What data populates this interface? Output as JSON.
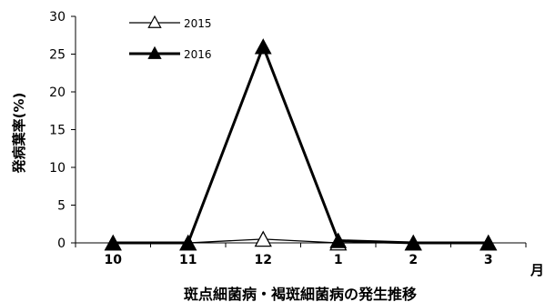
{
  "chart_data": {
    "type": "line",
    "title": "斑点細菌病・褐斑細菌病の発生推移",
    "xlabel": "月",
    "ylabel": "発病葉率(%)",
    "categories": [
      "10",
      "11",
      "12",
      "1",
      "2",
      "3"
    ],
    "ylim": [
      0,
      30
    ],
    "yticks": [
      "0",
      "5",
      "10",
      "15",
      "20",
      "25",
      "30"
    ],
    "grid": false,
    "legend_position": "top-left",
    "series": [
      {
        "name": "2015",
        "values": [
          0,
          0,
          0.5,
          0,
          0,
          0
        ],
        "marker": "open-triangle",
        "color": "#000000",
        "line_weight": "thin"
      },
      {
        "name": "2016",
        "values": [
          0,
          0,
          26,
          0.3,
          0,
          0
        ],
        "marker": "filled-triangle",
        "color": "#000000",
        "line_weight": "thick"
      }
    ]
  }
}
